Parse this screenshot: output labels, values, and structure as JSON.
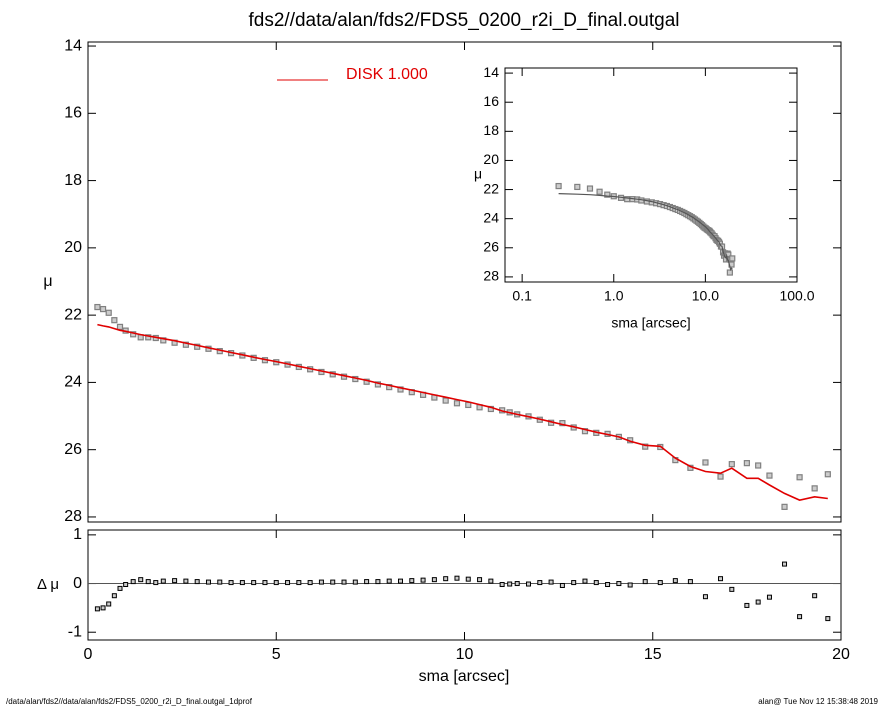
{
  "chart_data": {
    "type": "profile",
    "title": "fds2//data/alan/fds2/FDS5_0200_r2i_D_final.outgal",
    "footer_left": "/data/alan/fds2//data/alan/fds2/FDS5_0200_r2i_D_final.outgal_1dprof",
    "footer_right": "alan@  Tue Nov 12 15:38:48 2019",
    "xlabel": "sma [arcsec]",
    "ylabel": "μ",
    "xlim": [
      0,
      20
    ],
    "xticks": [
      0,
      5,
      10,
      15,
      20
    ],
    "ylim": [
      13.88,
      28.15
    ],
    "yticks": [
      14,
      16,
      18,
      20,
      22,
      24,
      26,
      28
    ],
    "x": [
      0.25,
      0.4,
      0.55,
      0.7,
      0.85,
      1.0,
      1.2,
      1.4,
      1.6,
      1.8,
      2.0,
      2.3,
      2.6,
      2.9,
      3.2,
      3.5,
      3.8,
      4.1,
      4.4,
      4.7,
      5.0,
      5.3,
      5.6,
      5.9,
      6.2,
      6.5,
      6.8,
      7.1,
      7.4,
      7.7,
      8.0,
      8.3,
      8.6,
      8.9,
      9.2,
      9.5,
      9.8,
      10.1,
      10.4,
      10.7,
      11.0,
      11.2,
      11.4,
      11.7,
      12.0,
      12.3,
      12.6,
      12.9,
      13.2,
      13.5,
      13.8,
      14.1,
      14.4,
      14.8,
      15.2,
      15.6,
      16.0,
      16.4,
      16.8,
      17.1,
      17.5,
      17.8,
      18.1,
      18.5,
      18.9,
      19.3,
      19.65
    ],
    "series": [
      {
        "color": "#808080",
        "values": [
          21.76,
          21.82,
          21.93,
          22.15,
          22.35,
          22.46,
          22.57,
          22.66,
          22.66,
          22.68,
          22.75,
          22.82,
          22.88,
          22.94,
          23.0,
          23.07,
          23.13,
          23.2,
          23.27,
          23.34,
          23.4,
          23.47,
          23.54,
          23.61,
          23.69,
          23.76,
          23.83,
          23.9,
          23.98,
          24.06,
          24.14,
          24.21,
          24.29,
          24.37,
          24.45,
          24.54,
          24.62,
          24.67,
          24.74,
          24.79,
          24.83,
          24.89,
          24.95,
          25.01,
          25.11,
          25.2,
          25.21,
          25.34,
          25.45,
          25.5,
          25.53,
          25.62,
          25.72,
          25.91,
          25.92,
          26.31,
          26.54,
          26.38,
          26.8,
          26.43,
          26.4,
          26.47,
          26.77,
          27.7,
          26.82,
          27.15,
          26.73
        ]
      },
      {
        "name": "DISK  1.000",
        "color": "#e00000",
        "values": [
          22.28,
          22.32,
          22.35,
          22.4,
          22.45,
          22.48,
          22.53,
          22.58,
          22.62,
          22.66,
          22.7,
          22.76,
          22.83,
          22.9,
          22.97,
          23.04,
          23.11,
          23.18,
          23.25,
          23.32,
          23.38,
          23.45,
          23.52,
          23.59,
          23.66,
          23.73,
          23.8,
          23.87,
          23.94,
          24.02,
          24.09,
          24.16,
          24.23,
          24.3,
          24.37,
          24.44,
          24.51,
          24.58,
          24.66,
          24.74,
          24.85,
          24.9,
          24.95,
          25.02,
          25.09,
          25.17,
          25.25,
          25.32,
          25.4,
          25.48,
          25.55,
          25.62,
          25.75,
          25.87,
          25.9,
          26.25,
          26.5,
          26.65,
          26.7,
          26.55,
          26.85,
          26.85,
          27.05,
          27.3,
          27.5,
          27.4,
          27.45
        ]
      }
    ],
    "residual": {
      "ylabel": "Δ μ",
      "ylim": [
        -1.16,
        1.1
      ],
      "yticks": [
        -1,
        0,
        1
      ],
      "color": "#000000",
      "values": [
        -0.52,
        -0.5,
        -0.42,
        -0.25,
        -0.1,
        -0.02,
        0.04,
        0.08,
        0.04,
        0.02,
        0.05,
        0.06,
        0.05,
        0.04,
        0.03,
        0.03,
        0.02,
        0.02,
        0.02,
        0.02,
        0.02,
        0.02,
        0.02,
        0.02,
        0.03,
        0.03,
        0.03,
        0.03,
        0.04,
        0.04,
        0.05,
        0.05,
        0.06,
        0.07,
        0.08,
        0.1,
        0.11,
        0.09,
        0.08,
        0.05,
        -0.02,
        -0.01,
        0.0,
        -0.01,
        0.02,
        0.03,
        -0.04,
        0.02,
        0.05,
        0.02,
        -0.02,
        0.0,
        -0.03,
        0.04,
        0.02,
        0.06,
        0.04,
        -0.27,
        0.1,
        -0.12,
        -0.45,
        -0.38,
        -0.28,
        0.4,
        -0.68,
        -0.25,
        -0.72
      ]
    },
    "inset": {
      "xlabel": "sma [arcsec]",
      "ylabel": "μ",
      "log_x": true,
      "model_color": "#555555",
      "xlim": [
        0.065,
        100
      ],
      "xticks": [
        0.1,
        {
          "value": 1,
          "label": "1.0"
        },
        {
          "value": 10,
          "label": "10.0"
        },
        {
          "value": 100,
          "label": "100.0"
        }
      ],
      "ylim": [
        13.65,
        28.35
      ],
      "yticks": [
        14,
        16,
        18,
        20,
        22,
        24,
        26,
        28
      ]
    }
  }
}
